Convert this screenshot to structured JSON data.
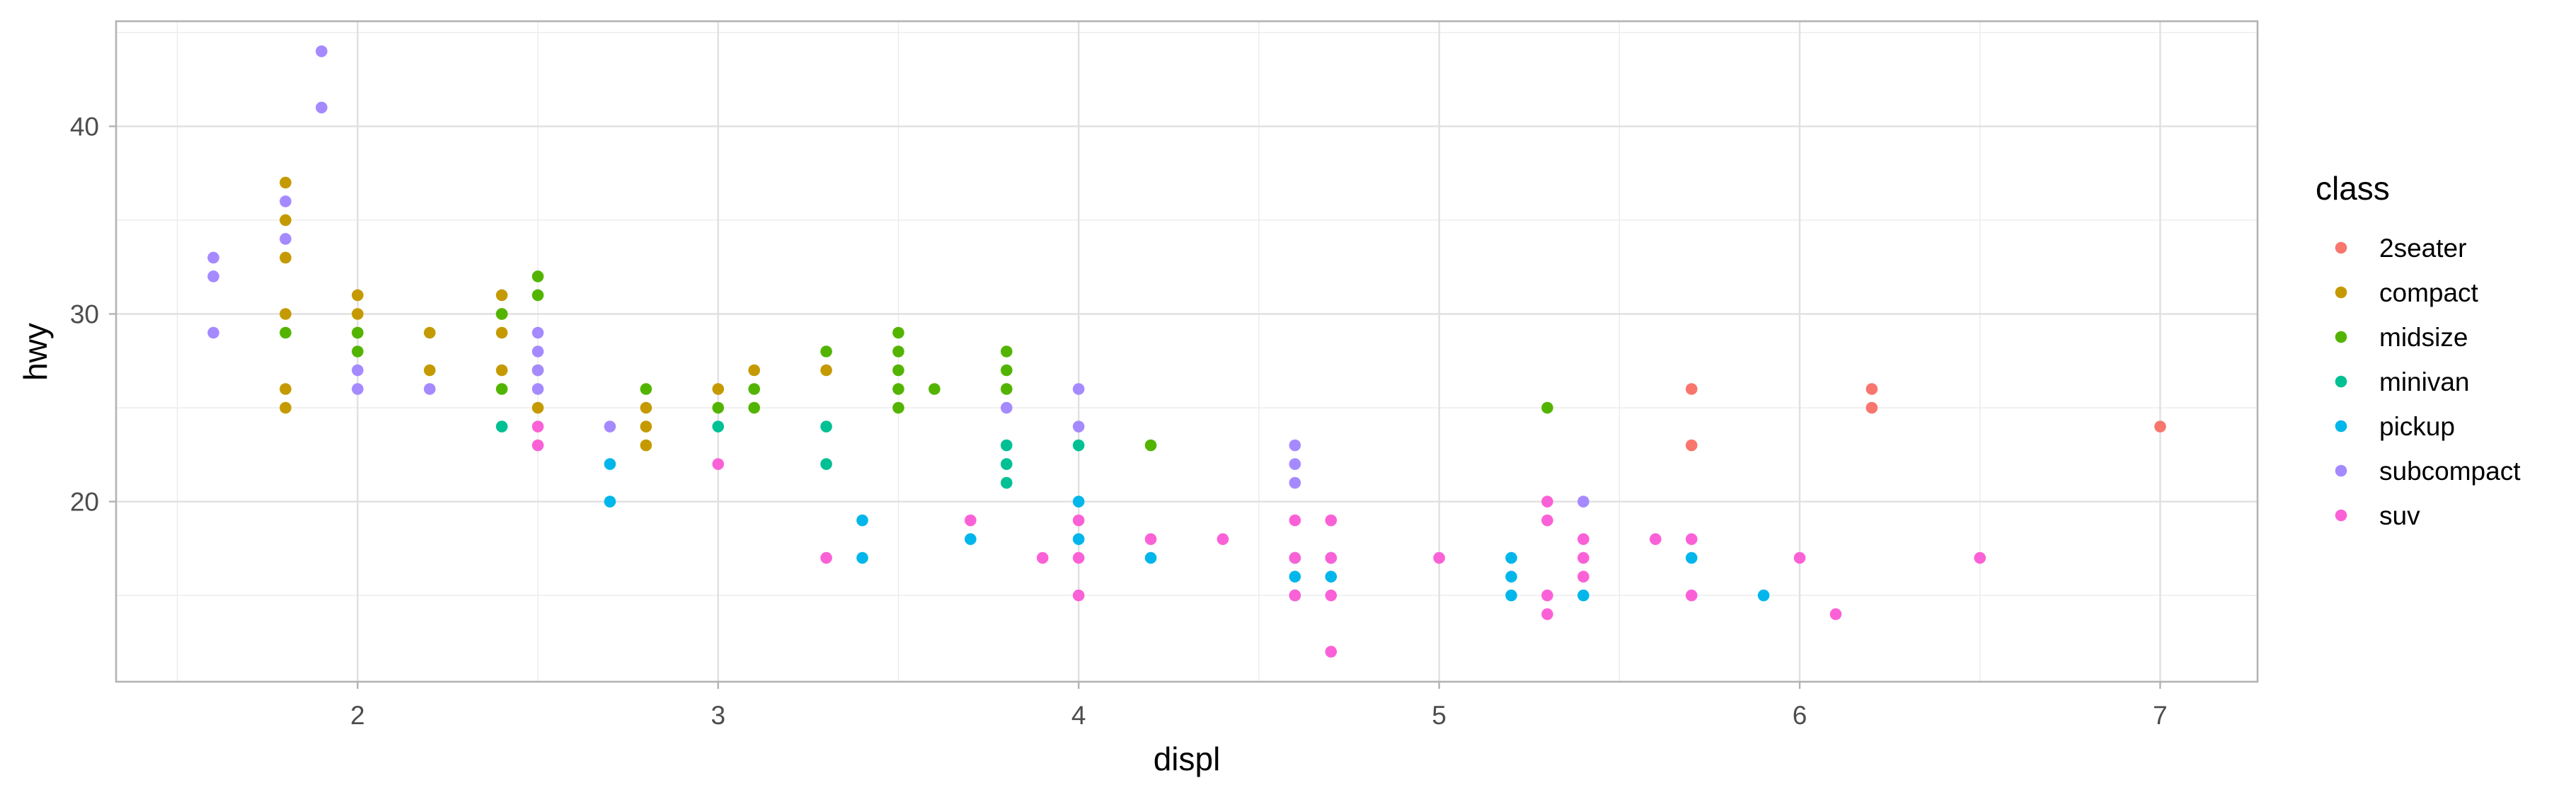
{
  "chart_data": {
    "type": "scatter",
    "title": "",
    "xlabel": "displ",
    "ylabel": "hwy",
    "xlim": [
      1.33,
      7.27
    ],
    "ylim": [
      10.4,
      45.6
    ],
    "x_ticks": [
      2,
      3,
      4,
      5,
      6,
      7
    ],
    "y_ticks": [
      20,
      30,
      40
    ],
    "x_tick_labels": [
      "2",
      "3",
      "4",
      "5",
      "6",
      "7"
    ],
    "y_tick_labels": [
      "20",
      "30",
      "40"
    ],
    "grid": true,
    "legend": {
      "title": "class",
      "placement": "right"
    },
    "series": [
      {
        "name": "2seater",
        "color": "#F8766D",
        "points": [
          [
            5.7,
            26
          ],
          [
            5.7,
            23
          ],
          [
            6.2,
            26
          ],
          [
            6.2,
            25
          ],
          [
            7.0,
            24
          ]
        ]
      },
      {
        "name": "compact",
        "color": "#C49A00",
        "points": [
          [
            1.8,
            37
          ],
          [
            1.8,
            35
          ],
          [
            1.8,
            33
          ],
          [
            1.8,
            30
          ],
          [
            1.8,
            26
          ],
          [
            1.8,
            25
          ],
          [
            2.0,
            31
          ],
          [
            2.0,
            30
          ],
          [
            2.0,
            29
          ],
          [
            2.2,
            29
          ],
          [
            2.2,
            27
          ],
          [
            2.4,
            31
          ],
          [
            2.4,
            30
          ],
          [
            2.4,
            29
          ],
          [
            2.4,
            27
          ],
          [
            2.5,
            27
          ],
          [
            2.5,
            25
          ],
          [
            2.8,
            25
          ],
          [
            2.8,
            24
          ],
          [
            2.8,
            23
          ],
          [
            3.0,
            26
          ],
          [
            3.1,
            27
          ],
          [
            3.3,
            27
          ]
        ]
      },
      {
        "name": "midsize",
        "color": "#53B400",
        "points": [
          [
            1.8,
            29
          ],
          [
            2.0,
            29
          ],
          [
            2.0,
            28
          ],
          [
            2.4,
            30
          ],
          [
            2.4,
            26
          ],
          [
            2.5,
            32
          ],
          [
            2.5,
            31
          ],
          [
            2.8,
            26
          ],
          [
            3.0,
            25
          ],
          [
            3.1,
            26
          ],
          [
            3.1,
            25
          ],
          [
            3.3,
            28
          ],
          [
            3.5,
            29
          ],
          [
            3.5,
            28
          ],
          [
            3.5,
            27
          ],
          [
            3.5,
            26
          ],
          [
            3.5,
            25
          ],
          [
            3.6,
            26
          ],
          [
            3.8,
            28
          ],
          [
            3.8,
            27
          ],
          [
            3.8,
            26
          ],
          [
            4.2,
            23
          ],
          [
            5.3,
            25
          ]
        ]
      },
      {
        "name": "minivan",
        "color": "#00C094",
        "points": [
          [
            2.4,
            24
          ],
          [
            3.0,
            24
          ],
          [
            3.3,
            24
          ],
          [
            3.3,
            22
          ],
          [
            3.8,
            23
          ],
          [
            3.8,
            22
          ],
          [
            3.8,
            21
          ],
          [
            4.0,
            23
          ]
        ]
      },
      {
        "name": "pickup",
        "color": "#00B6EB",
        "points": [
          [
            2.7,
            22
          ],
          [
            2.7,
            20
          ],
          [
            3.4,
            19
          ],
          [
            3.4,
            17
          ],
          [
            3.7,
            18
          ],
          [
            4.0,
            20
          ],
          [
            4.0,
            18
          ],
          [
            4.2,
            17
          ],
          [
            4.6,
            17
          ],
          [
            4.6,
            16
          ],
          [
            4.6,
            15
          ],
          [
            4.7,
            17
          ],
          [
            4.7,
            16
          ],
          [
            5.2,
            17
          ],
          [
            5.2,
            16
          ],
          [
            5.2,
            15
          ],
          [
            5.4,
            15
          ],
          [
            5.7,
            17
          ],
          [
            5.9,
            15
          ]
        ]
      },
      {
        "name": "subcompact",
        "color": "#A58AFF",
        "points": [
          [
            1.6,
            33
          ],
          [
            1.6,
            32
          ],
          [
            1.6,
            29
          ],
          [
            1.8,
            36
          ],
          [
            1.8,
            34
          ],
          [
            1.9,
            44
          ],
          [
            1.9,
            41
          ],
          [
            2.0,
            27
          ],
          [
            2.0,
            26
          ],
          [
            2.2,
            26
          ],
          [
            2.5,
            29
          ],
          [
            2.5,
            28
          ],
          [
            2.5,
            27
          ],
          [
            2.5,
            26
          ],
          [
            2.7,
            24
          ],
          [
            3.8,
            25
          ],
          [
            4.0,
            26
          ],
          [
            4.0,
            24
          ],
          [
            4.6,
            23
          ],
          [
            4.6,
            22
          ],
          [
            4.6,
            21
          ],
          [
            5.4,
            20
          ]
        ]
      },
      {
        "name": "suv",
        "color": "#FB61D7",
        "points": [
          [
            2.5,
            24
          ],
          [
            2.5,
            23
          ],
          [
            3.0,
            22
          ],
          [
            3.3,
            17
          ],
          [
            3.7,
            19
          ],
          [
            3.9,
            17
          ],
          [
            4.0,
            19
          ],
          [
            4.0,
            17
          ],
          [
            4.0,
            15
          ],
          [
            4.2,
            18
          ],
          [
            4.4,
            18
          ],
          [
            4.6,
            19
          ],
          [
            4.6,
            17
          ],
          [
            4.6,
            15
          ],
          [
            4.7,
            19
          ],
          [
            4.7,
            17
          ],
          [
            4.7,
            15
          ],
          [
            4.7,
            12
          ],
          [
            5.0,
            17
          ],
          [
            5.3,
            20
          ],
          [
            5.3,
            19
          ],
          [
            5.3,
            15
          ],
          [
            5.3,
            14
          ],
          [
            5.4,
            18
          ],
          [
            5.4,
            17
          ],
          [
            5.4,
            16
          ],
          [
            5.6,
            18
          ],
          [
            5.7,
            18
          ],
          [
            5.7,
            15
          ],
          [
            6.0,
            17
          ],
          [
            6.1,
            14
          ],
          [
            6.5,
            17
          ]
        ]
      }
    ]
  }
}
